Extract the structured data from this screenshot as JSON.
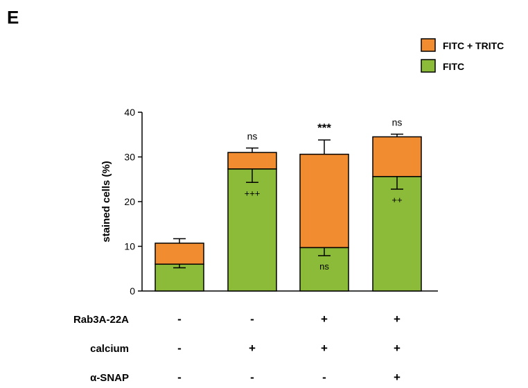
{
  "panel_label": "E",
  "colors": {
    "FITC": "#8BBB39",
    "FITC + TRITC": "#F28C30",
    "axis": "#000000"
  },
  "chart_data": {
    "type": "bar",
    "stacked": true,
    "categories": [
      "",
      "",
      "",
      ""
    ],
    "ylabel": "stained cells (%)",
    "ylim": [
      0,
      40
    ],
    "yticks": [
      0,
      10,
      20,
      30,
      40
    ],
    "grid": false,
    "legend_position": "top-right",
    "series": [
      {
        "name": "FITC",
        "values": [
          6.0,
          27.3,
          9.7,
          25.6
        ],
        "error": [
          0.8,
          3.0,
          1.8,
          2.8
        ],
        "error_direction": "down"
      },
      {
        "name": "FITC + TRITC",
        "values": [
          4.7,
          3.7,
          20.9,
          8.9
        ],
        "error": [
          1.0,
          1.0,
          3.2,
          0.6
        ],
        "error_direction": "up"
      }
    ],
    "annotations_top": [
      "",
      "ns",
      "***",
      "ns"
    ],
    "annotations_green": [
      "",
      "+++",
      "ns",
      "++"
    ],
    "conditions": [
      {
        "label": "Rab3A-22A",
        "values": [
          "-",
          "-",
          "+",
          "+"
        ]
      },
      {
        "label": "calcium",
        "values": [
          "-",
          "+",
          "+",
          "+"
        ]
      },
      {
        "label": "α-SNAP",
        "values": [
          "-",
          "-",
          "-",
          "+"
        ]
      }
    ]
  }
}
